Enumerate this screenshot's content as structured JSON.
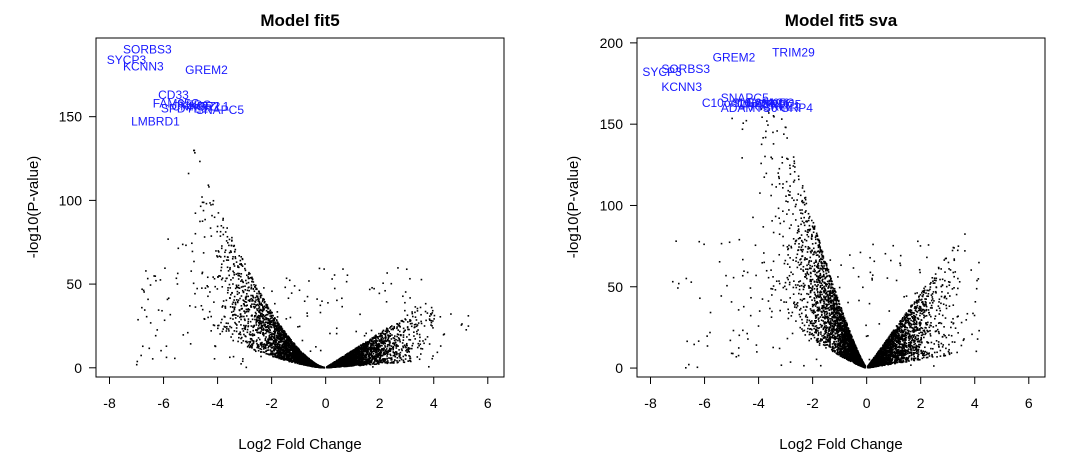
{
  "chart_data": [
    {
      "type": "scatter",
      "title": "Model fit5",
      "xlabel": "Log2 Fold Change",
      "ylabel": "-log10(P-value)",
      "xlim": [
        -8.5,
        6.6
      ],
      "ylim": [
        -5.5,
        197
      ],
      "xticks": [
        -8,
        -6,
        -4,
        -2,
        0,
        2,
        4,
        6
      ],
      "yticks": [
        0,
        50,
        100,
        150
      ],
      "grid": false,
      "point_color": "#000000",
      "label_color": "#1a1aff",
      "labeled_genes": [
        {
          "name": "SORBS3",
          "x": -7.5,
          "y": 190
        },
        {
          "name": "SYCP3",
          "x": -8.1,
          "y": 184
        },
        {
          "name": "KCNN3",
          "x": -7.5,
          "y": 180
        },
        {
          "name": "GREM2",
          "x": -5.2,
          "y": 178
        },
        {
          "name": "CD33",
          "x": -6.2,
          "y": 163
        },
        {
          "name": "FAM65C",
          "x": -6.4,
          "y": 158
        },
        {
          "name": "RERG",
          "x": -5.5,
          "y": 157
        },
        {
          "name": "CNKSR2",
          "x": -5.7,
          "y": 156
        },
        {
          "name": "SPDYE1",
          "x": -6.1,
          "y": 155
        },
        {
          "name": "MPZL1",
          "x": -5.0,
          "y": 156
        },
        {
          "name": "SNAPC5",
          "x": -4.8,
          "y": 154
        },
        {
          "name": "LMBRD1",
          "x": -7.2,
          "y": 147
        }
      ]
    },
    {
      "type": "scatter",
      "title": "Model fit5 sva",
      "xlabel": "Log2 Fold Change",
      "ylabel": "-log10(P-value)",
      "xlim": [
        -8.5,
        6.6
      ],
      "ylim": [
        -5.5,
        203
      ],
      "xticks": [
        -8,
        -6,
        -4,
        -2,
        0,
        2,
        4,
        6
      ],
      "yticks": [
        0,
        50,
        100,
        150,
        200
      ],
      "grid": false,
      "point_color": "#000000",
      "label_color": "#1a1aff",
      "labeled_genes": [
        {
          "name": "TRIM29",
          "x": -3.5,
          "y": 194
        },
        {
          "name": "GREM2",
          "x": -5.7,
          "y": 191
        },
        {
          "name": "SORBS3",
          "x": -7.6,
          "y": 184
        },
        {
          "name": "SYCP3",
          "x": -8.3,
          "y": 182
        },
        {
          "name": "KCNN3",
          "x": -7.6,
          "y": 173
        },
        {
          "name": "SNAPC5",
          "x": -5.4,
          "y": 166
        },
        {
          "name": "FAM65C",
          "x": -4.4,
          "y": 163
        },
        {
          "name": "C10orf10",
          "x": -6.1,
          "y": 163
        },
        {
          "name": "SLC25A26",
          "x": -5.0,
          "y": 163
        },
        {
          "name": "CNKSR2",
          "x": -4.8,
          "y": 162
        },
        {
          "name": "PRICKLE1",
          "x": -4.6,
          "y": 161
        },
        {
          "name": "ADAMTS6",
          "x": -5.4,
          "y": 160
        },
        {
          "name": "TRIM25",
          "x": -4.0,
          "y": 162
        },
        {
          "name": "GRP4",
          "x": -3.2,
          "y": 160
        }
      ]
    }
  ]
}
